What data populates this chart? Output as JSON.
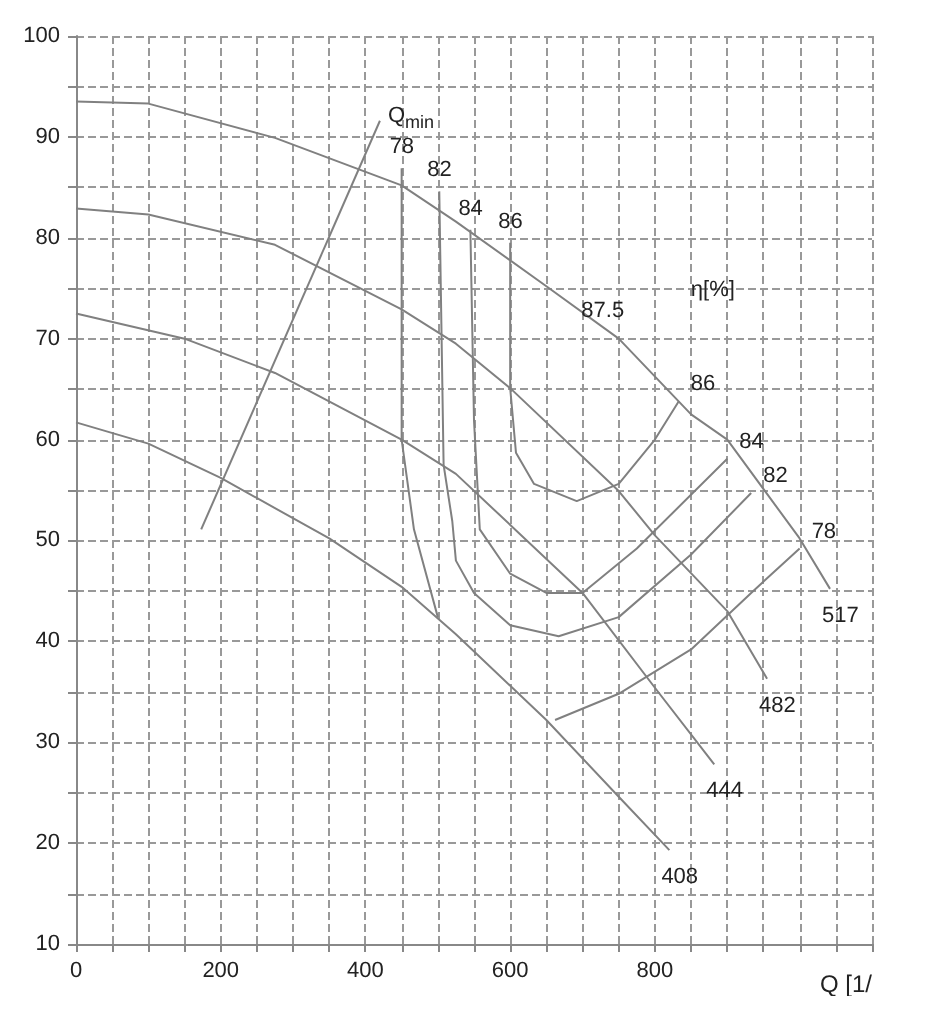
{
  "chart_data": {
    "type": "line",
    "xlabel": "Q [1/",
    "xlim": [
      0,
      1100
    ],
    "ylim": [
      10,
      100
    ],
    "xticks": [
      0,
      {
        "value": 50,
        "label": null
      },
      {
        "value": 100,
        "label": null
      },
      {
        "value": 150,
        "label": null
      },
      200,
      {
        "value": 250,
        "label": null
      },
      {
        "value": 300,
        "label": null
      },
      {
        "value": 350,
        "label": null
      },
      400,
      {
        "value": 450,
        "label": null
      },
      {
        "value": 500,
        "label": null
      },
      {
        "value": 550,
        "label": null
      },
      600,
      {
        "value": 650,
        "label": null
      },
      {
        "value": 700,
        "label": null
      },
      {
        "value": 750,
        "label": null
      },
      800,
      {
        "value": 850,
        "label": null
      },
      {
        "value": 900,
        "label": null
      },
      {
        "value": 950,
        "label": null
      },
      {
        "value": 1000,
        "label": null
      },
      {
        "value": 1050,
        "label": null
      },
      {
        "value": 1100,
        "label": null
      }
    ],
    "yticks": [
      10,
      {
        "value": 15,
        "label": null
      },
      20,
      {
        "value": 25,
        "label": null
      },
      30,
      {
        "value": 35,
        "label": null
      },
      40,
      {
        "value": 45,
        "label": null
      },
      50,
      {
        "value": 55,
        "label": null
      },
      60,
      {
        "value": 65,
        "label": null
      },
      70,
      {
        "value": 75,
        "label": null
      },
      80,
      {
        "value": 85,
        "label": null
      },
      90,
      {
        "value": 95,
        "label": null
      },
      100
    ],
    "grid": true,
    "marker": "none",
    "line_style": "solid",
    "series": [
      {
        "name": "517",
        "color": "#808080",
        "x": [
          0,
          100,
          275,
          450,
          525,
          650,
          750,
          850,
          900,
          1000,
          1042
        ],
        "values": [
          93.5,
          93.3,
          89.9,
          85.2,
          81.6,
          75.2,
          70,
          62.5,
          60,
          50.2,
          45.2
        ]
      },
      {
        "name": "482",
        "color": "#808080",
        "x": [
          0,
          100,
          275,
          450,
          525,
          600,
          750,
          800,
          900,
          955
        ],
        "values": [
          82.9,
          82.3,
          79.3,
          72.9,
          69.5,
          65.1,
          54.9,
          50.5,
          43,
          36.3
        ]
      },
      {
        "name": "444",
        "color": "#808080",
        "x": [
          0,
          150,
          275,
          450,
          525,
          700,
          800,
          882
        ],
        "values": [
          72.5,
          70,
          66.6,
          60,
          56.6,
          44.8,
          35.4,
          27.8
        ]
      },
      {
        "name": "408",
        "color": "#808080",
        "x": [
          0,
          100,
          200,
          350,
          450,
          525,
          650,
          750,
          820
        ],
        "values": [
          61.7,
          59.6,
          56.2,
          50.2,
          45.4,
          40.7,
          32.2,
          24.6,
          19.3
        ]
      },
      {
        "name": "Q$_{min}$",
        "color": "#808080",
        "x": [
          173,
          420
        ],
        "values": [
          51.1,
          91.6
        ]
      },
      {
        "name": "78",
        "color": "#808080",
        "x": [
          450,
          450,
          467,
          500,
          580,
          662,
          750,
          850,
          933,
          1000
        ],
        "values": [
          86.9,
          60,
          51.1,
          42.4,
          null,
          32.2,
          34.8,
          39.2,
          44.8,
          49.2
        ]
      },
      {
        "name": "82",
        "color": "#808080",
        "x": [
          502,
          508,
          520,
          525,
          550,
          600,
          667,
          750,
          850,
          933
        ],
        "values": [
          84.6,
          57.5,
          51.9,
          48,
          44.8,
          41.6,
          40.5,
          42.4,
          48.6,
          54.7
        ]
      },
      {
        "name": "84",
        "color": "#808080",
        "x": [
          545,
          550,
          558,
          600,
          650,
          700,
          775,
          900
        ],
        "values": [
          80.8,
          61.9,
          51.1,
          46.7,
          44.8,
          44.8,
          49.2,
          58.1
        ]
      },
      {
        "name": "86",
        "color": "#808080",
        "x": [
          600,
          600,
          608,
          633,
          692,
          750,
          800,
          833
        ],
        "values": [
          79.5,
          65.1,
          58.7,
          55.6,
          53.9,
          55.6,
          60,
          63.8
        ]
      }
    ],
    "annotations": [
      "η[%]",
      {
        "text": "87.5",
        "x": 750,
        "y": 70
      }
    ]
  }
}
